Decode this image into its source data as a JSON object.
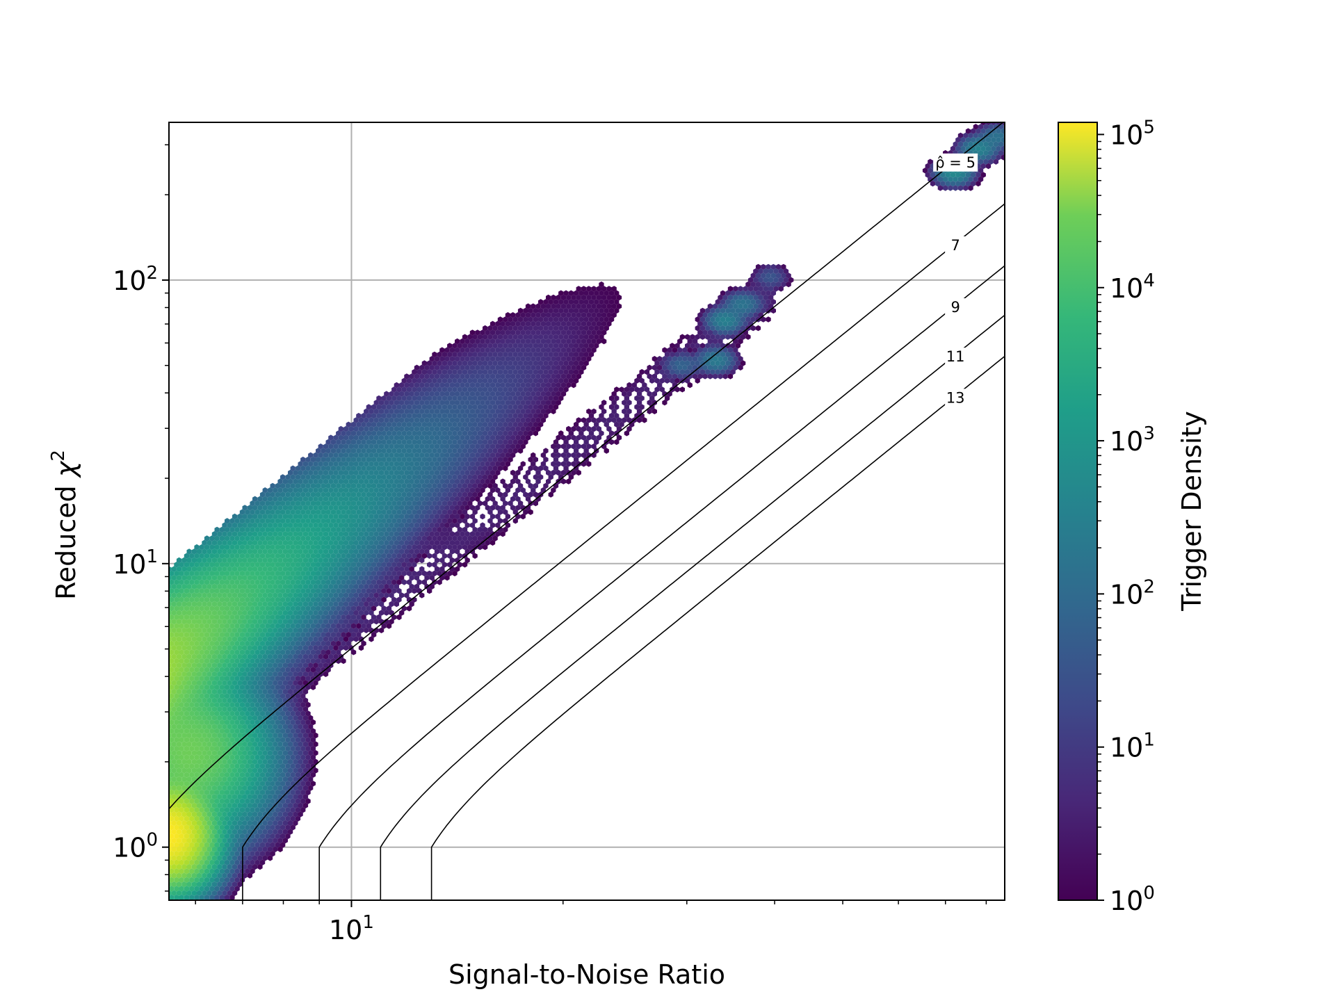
{
  "chart_data": {
    "type": "heatmap",
    "subtype": "hexbin",
    "xlabel": "Signal-to-Noise Ratio",
    "ylabel": "Reduced χ²",
    "xscale": "log",
    "yscale": "log",
    "xlim": [
      5.5,
      85
    ],
    "ylim": [
      0.65,
      360
    ],
    "grid": true,
    "x_tick_labels": [
      {
        "base": "10",
        "exp": "1",
        "value": 10
      }
    ],
    "y_tick_labels": [
      {
        "base": "10",
        "exp": "0",
        "value": 1
      },
      {
        "base": "10",
        "exp": "1",
        "value": 10
      },
      {
        "base": "10",
        "exp": "2",
        "value": 100
      }
    ],
    "colorbar": {
      "label": "Trigger Density",
      "scale": "log",
      "colormap": "viridis",
      "range": [
        1,
        120000
      ],
      "ticks": [
        {
          "base": "10",
          "exp": "0",
          "value": 1
        },
        {
          "base": "10",
          "exp": "1",
          "value": 10
        },
        {
          "base": "10",
          "exp": "2",
          "value": 100
        },
        {
          "base": "10",
          "exp": "3",
          "value": 1000
        },
        {
          "base": "10",
          "exp": "4",
          "value": 10000
        },
        {
          "base": "10",
          "exp": "5",
          "value": 100000
        }
      ]
    },
    "contours": [
      {
        "rho": 5,
        "label": "ρ̂ = 5"
      },
      {
        "rho": 7,
        "label": "7"
      },
      {
        "rho": 9,
        "label": "9"
      },
      {
        "rho": 11,
        "label": "11"
      },
      {
        "rho": 13,
        "label": "13"
      }
    ],
    "density_description": "Triggers concentrated near SNR 5.5-6, reduced chi-squared 1-1.3 (peak ~1e5), extending as a band along chi2 ~ SNR^2/9 up to SNR ~36, chi2 ~100, with isolated clusters up to SNR ~80, chi2 ~320."
  }
}
